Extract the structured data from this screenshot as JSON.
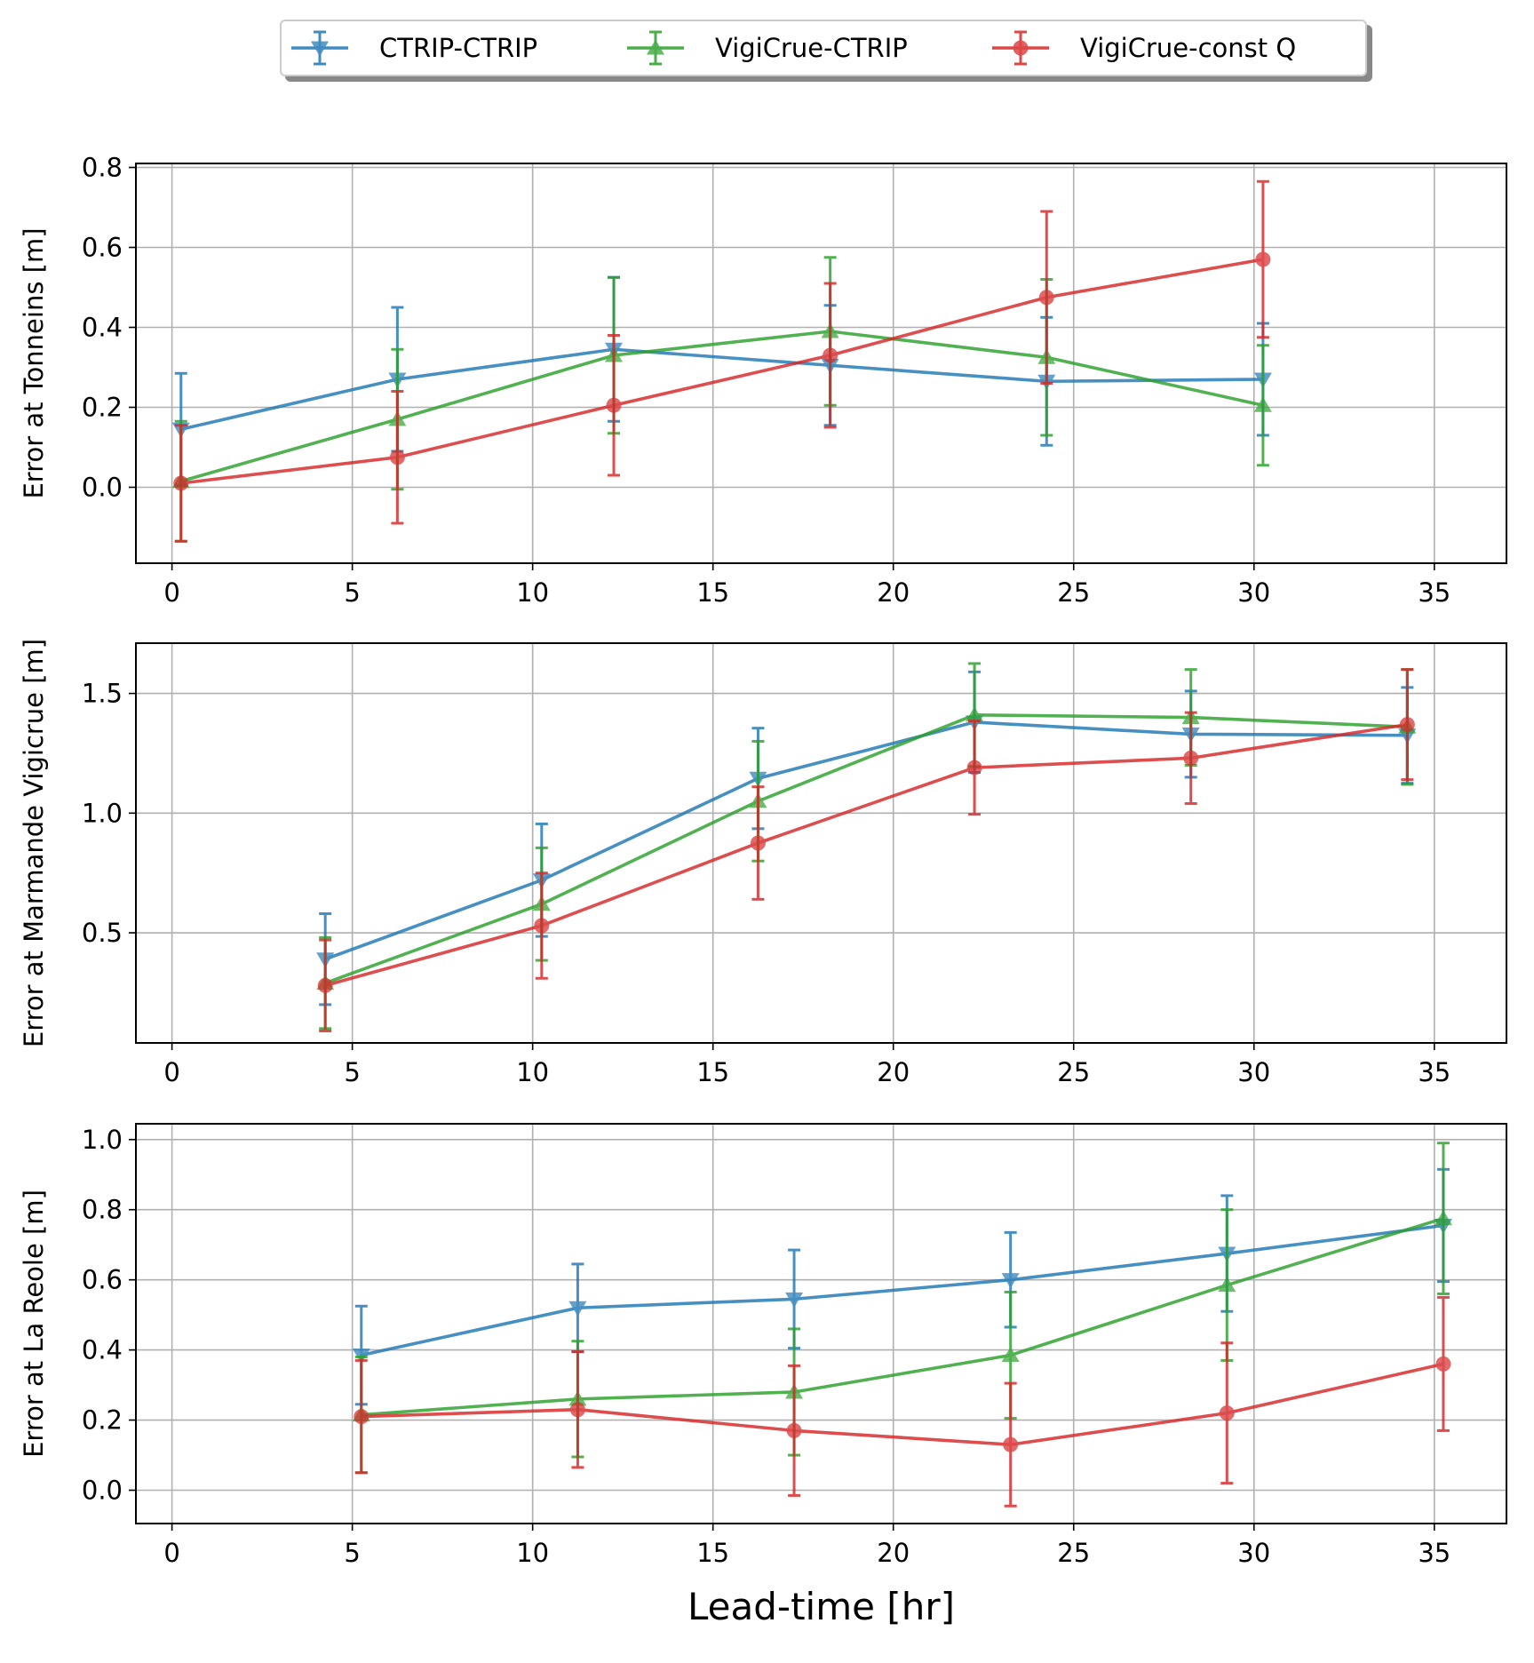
{
  "chart_data": {
    "type": "line",
    "xlabel": "Lead-time [hr]",
    "legend": {
      "placement": "top-center",
      "entries": [
        {
          "name": "CTRIP-CTRIP",
          "color": "#1f77b4",
          "marker": "triangle-down"
        },
        {
          "name": "VigiCrue-CTRIP",
          "color": "#2ca02c",
          "marker": "triangle-up"
        },
        {
          "name": "VigiCrue-const Q",
          "color": "#d62728",
          "marker": "circle"
        }
      ]
    },
    "grid": true,
    "panels": [
      {
        "ylabel": "Error at Tonneins [m]",
        "xlim": [
          -1,
          37
        ],
        "ylim": [
          -0.19,
          0.81
        ],
        "xticks": [
          "0",
          "5",
          "10",
          "15",
          "20",
          "25",
          "30",
          "35"
        ],
        "yticks": [
          "0.0",
          "0.2",
          "0.4",
          "0.6",
          "0.8"
        ],
        "series": [
          {
            "name": "CTRIP-CTRIP",
            "color": "#1f77b4",
            "marker": "triangle-down",
            "x": [
              0.25,
              6.25,
              12.25,
              18.25,
              24.25,
              30.25
            ],
            "y": [
              0.145,
              0.27,
              0.345,
              0.305,
              0.265,
              0.27
            ],
            "err": [
              0.14,
              0.18,
              0.18,
              0.15,
              0.16,
              0.14
            ]
          },
          {
            "name": "VigiCrue-CTRIP",
            "color": "#2ca02c",
            "marker": "triangle-up",
            "x": [
              0.25,
              6.25,
              12.25,
              18.25,
              24.25,
              30.25
            ],
            "y": [
              0.015,
              0.17,
              0.33,
              0.39,
              0.325,
              0.205
            ],
            "err": [
              0.15,
              0.175,
              0.195,
              0.185,
              0.195,
              0.15
            ]
          },
          {
            "name": "VigiCrue-const Q",
            "color": "#d62728",
            "marker": "circle",
            "x": [
              0.25,
              6.25,
              12.25,
              18.25,
              24.25,
              30.25
            ],
            "y": [
              0.01,
              0.075,
              0.205,
              0.33,
              0.475,
              0.57
            ],
            "err": [
              0.145,
              0.165,
              0.175,
              0.18,
              0.215,
              0.195
            ]
          }
        ]
      },
      {
        "ylabel": "Error at Marmande Vigicrue [m]",
        "xlim": [
          -1,
          37
        ],
        "ylim": [
          0.04,
          1.71
        ],
        "xticks": [
          "0",
          "5",
          "10",
          "15",
          "20",
          "25",
          "30",
          "35"
        ],
        "yticks": [
          "0.5",
          "1.0",
          "1.5"
        ],
        "series": [
          {
            "name": "CTRIP-CTRIP",
            "color": "#1f77b4",
            "marker": "triangle-down",
            "x": [
              4.25,
              10.25,
              16.25,
              22.25,
              28.25,
              34.25
            ],
            "y": [
              0.39,
              0.72,
              1.145,
              1.38,
              1.33,
              1.325
            ],
            "err": [
              0.19,
              0.235,
              0.21,
              0.21,
              0.18,
              0.2
            ]
          },
          {
            "name": "VigiCrue-CTRIP",
            "color": "#2ca02c",
            "marker": "triangle-up",
            "x": [
              4.25,
              10.25,
              16.25,
              22.25,
              28.25,
              34.25
            ],
            "y": [
              0.29,
              0.62,
              1.05,
              1.41,
              1.4,
              1.36
            ],
            "err": [
              0.19,
              0.235,
              0.25,
              0.215,
              0.2,
              0.24
            ]
          },
          {
            "name": "VigiCrue-const Q",
            "color": "#d62728",
            "marker": "circle",
            "x": [
              4.25,
              10.25,
              16.25,
              22.25,
              28.25,
              34.25
            ],
            "y": [
              0.28,
              0.53,
              0.875,
              1.19,
              1.23,
              1.37
            ],
            "err": [
              0.19,
              0.22,
              0.235,
              0.195,
              0.19,
              0.23
            ]
          }
        ]
      },
      {
        "ylabel": "Error at La Reole [m]",
        "xlim": [
          -1,
          37
        ],
        "ylim": [
          -0.095,
          1.045
        ],
        "xticks": [
          "0",
          "5",
          "10",
          "15",
          "20",
          "25",
          "30",
          "35"
        ],
        "yticks": [
          "0.0",
          "0.2",
          "0.4",
          "0.6",
          "0.8",
          "1.0"
        ],
        "series": [
          {
            "name": "CTRIP-CTRIP",
            "color": "#1f77b4",
            "marker": "triangle-down",
            "x": [
              5.25,
              11.25,
              17.25,
              23.25,
              29.25,
              35.25
            ],
            "y": [
              0.385,
              0.52,
              0.545,
              0.6,
              0.675,
              0.755
            ],
            "err": [
              0.14,
              0.125,
              0.14,
              0.135,
              0.165,
              0.16
            ]
          },
          {
            "name": "VigiCrue-CTRIP",
            "color": "#2ca02c",
            "marker": "triangle-up",
            "x": [
              5.25,
              11.25,
              17.25,
              23.25,
              29.25,
              35.25
            ],
            "y": [
              0.215,
              0.26,
              0.28,
              0.385,
              0.585,
              0.775
            ],
            "err": [
              0.165,
              0.165,
              0.18,
              0.18,
              0.215,
              0.215
            ]
          },
          {
            "name": "VigiCrue-const Q",
            "color": "#d62728",
            "marker": "circle",
            "x": [
              5.25,
              11.25,
              17.25,
              23.25,
              29.25,
              35.25
            ],
            "y": [
              0.21,
              0.23,
              0.17,
              0.13,
              0.22,
              0.36
            ],
            "err": [
              0.16,
              0.165,
              0.185,
              0.175,
              0.2,
              0.19
            ]
          }
        ]
      }
    ]
  }
}
